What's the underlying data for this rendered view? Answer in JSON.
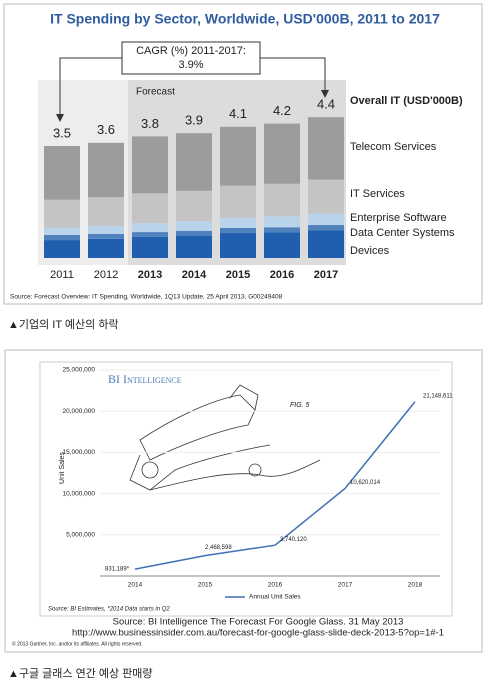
{
  "chart_data": [
    {
      "type": "stacked-bar",
      "title": "IT Spending by Sector, Worldwide, USD'000B, 2011 to 2017",
      "annotation": [
        "CAGR (%) 2011-2017:",
        "3.9%"
      ],
      "forecast_label": "Forecast",
      "categories": [
        "2011",
        "2012",
        "2013",
        "2014",
        "2015",
        "2016",
        "2017"
      ],
      "series": [
        {
          "name": "Devices",
          "color": "#1f5fad",
          "values": [
            0.56,
            0.6,
            0.66,
            0.7,
            0.78,
            0.8,
            0.86
          ]
        },
        {
          "name": "Data Center Systems",
          "color": "#4f81bd",
          "values": [
            0.16,
            0.15,
            0.15,
            0.15,
            0.16,
            0.16,
            0.17
          ]
        },
        {
          "name": "Enterprise Software",
          "color": "#b9d3ea",
          "values": [
            0.22,
            0.25,
            0.28,
            0.3,
            0.32,
            0.34,
            0.36
          ]
        },
        {
          "name": "IT Services",
          "color": "#c4c4c4",
          "values": [
            0.88,
            0.9,
            0.93,
            0.95,
            1.0,
            1.02,
            1.06
          ]
        },
        {
          "name": "Telecom Services",
          "color": "#9c9c9c",
          "values": [
            1.68,
            1.7,
            1.78,
            1.8,
            1.84,
            1.88,
            1.95
          ]
        }
      ],
      "totals_label": "Overall IT (USD'000B)",
      "totals": [
        3.5,
        3.6,
        3.8,
        3.9,
        4.1,
        4.2,
        4.4
      ],
      "source": "Source: Forecast Overview: IT Spending, Worldwide, 1Q13 Update, 25 April 2013, G00249408"
    },
    {
      "type": "line",
      "title": "BI Intelligence",
      "figure_label": "FIG. 5",
      "y_label": "Unit Sales",
      "categories": [
        "2014",
        "2015",
        "2016",
        "2017",
        "2018"
      ],
      "series": [
        {
          "name": "Annual Unit Sales",
          "color": "#3f6fb5",
          "values": [
            831189,
            2468598,
            3740120,
            10620014,
            21148611
          ],
          "value_labels": [
            "831,189*",
            "2,468,598",
            "3,740,120",
            "10,620,014",
            "21,148,611"
          ]
        }
      ],
      "ylim": [
        0,
        25000000
      ],
      "yticks": [
        {
          "value": 5000000,
          "label": "5,000,000"
        },
        {
          "value": 10000000,
          "label": "10,000,000"
        },
        {
          "value": 15000000,
          "label": "15,000,000"
        },
        {
          "value": 20000000,
          "label": "20,000,000"
        },
        {
          "value": 25000000,
          "label": "25,000,000"
        }
      ],
      "note": "Source: BI Estimates, *2014 Data starts in Q2"
    }
  ],
  "captions": {
    "chart1": "▲기업의 IT 예산의 하락",
    "source": [
      "Source: BI Intelligence The Forecast For Google Glass. 31 May 2013",
      "http://www.businessinsider.com.au/forecast-for-google-glass-slide-deck-2013-5?op=1#-1"
    ],
    "credit": "© 2013 Gartner, Inc. and/or its affiliates. All rights reserved.",
    "chart2": "▲구글 글래스 연간 예상 판매량"
  }
}
